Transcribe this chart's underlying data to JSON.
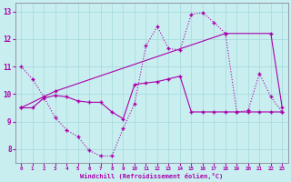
{
  "xlabel": "Windchill (Refroidissement éolien,°C)",
  "xlim": [
    -0.5,
    23.5
  ],
  "ylim": [
    7.5,
    13.3
  ],
  "yticks": [
    8,
    9,
    10,
    11,
    12,
    13
  ],
  "xticks": [
    0,
    1,
    2,
    3,
    4,
    5,
    6,
    7,
    8,
    9,
    10,
    11,
    12,
    13,
    14,
    15,
    16,
    17,
    18,
    19,
    20,
    21,
    22,
    23
  ],
  "bg_color": "#c8eef0",
  "line_color": "#aa00aa",
  "grid_color": "#aadddd",
  "line1_x": [
    0,
    1,
    2,
    3,
    4,
    5,
    6,
    7,
    8,
    9,
    10,
    11,
    12,
    13,
    14,
    15,
    16,
    17,
    18,
    19,
    20,
    21,
    22,
    23
  ],
  "line1_y": [
    11.0,
    10.55,
    9.9,
    9.15,
    8.7,
    8.45,
    7.95,
    7.75,
    7.75,
    8.75,
    9.65,
    11.75,
    12.45,
    11.65,
    11.6,
    12.9,
    12.95,
    12.6,
    12.2,
    9.35,
    9.4,
    10.75,
    9.9,
    9.35
  ],
  "line2_x": [
    0,
    3,
    18,
    22,
    23
  ],
  "line2_y": [
    9.5,
    10.1,
    12.2,
    12.2,
    9.5
  ],
  "line3_x": [
    0,
    1,
    2,
    3,
    4,
    5,
    6,
    7,
    8,
    9,
    10,
    11,
    12,
    13,
    14,
    15,
    16,
    17,
    18,
    19,
    20,
    21,
    22,
    23
  ],
  "line3_y": [
    9.5,
    9.5,
    9.85,
    9.95,
    9.9,
    9.75,
    9.7,
    9.7,
    9.35,
    9.1,
    10.35,
    10.4,
    10.45,
    10.55,
    10.65,
    9.35,
    9.35,
    9.35,
    9.35,
    9.35,
    9.35,
    9.35,
    9.35,
    9.35
  ]
}
